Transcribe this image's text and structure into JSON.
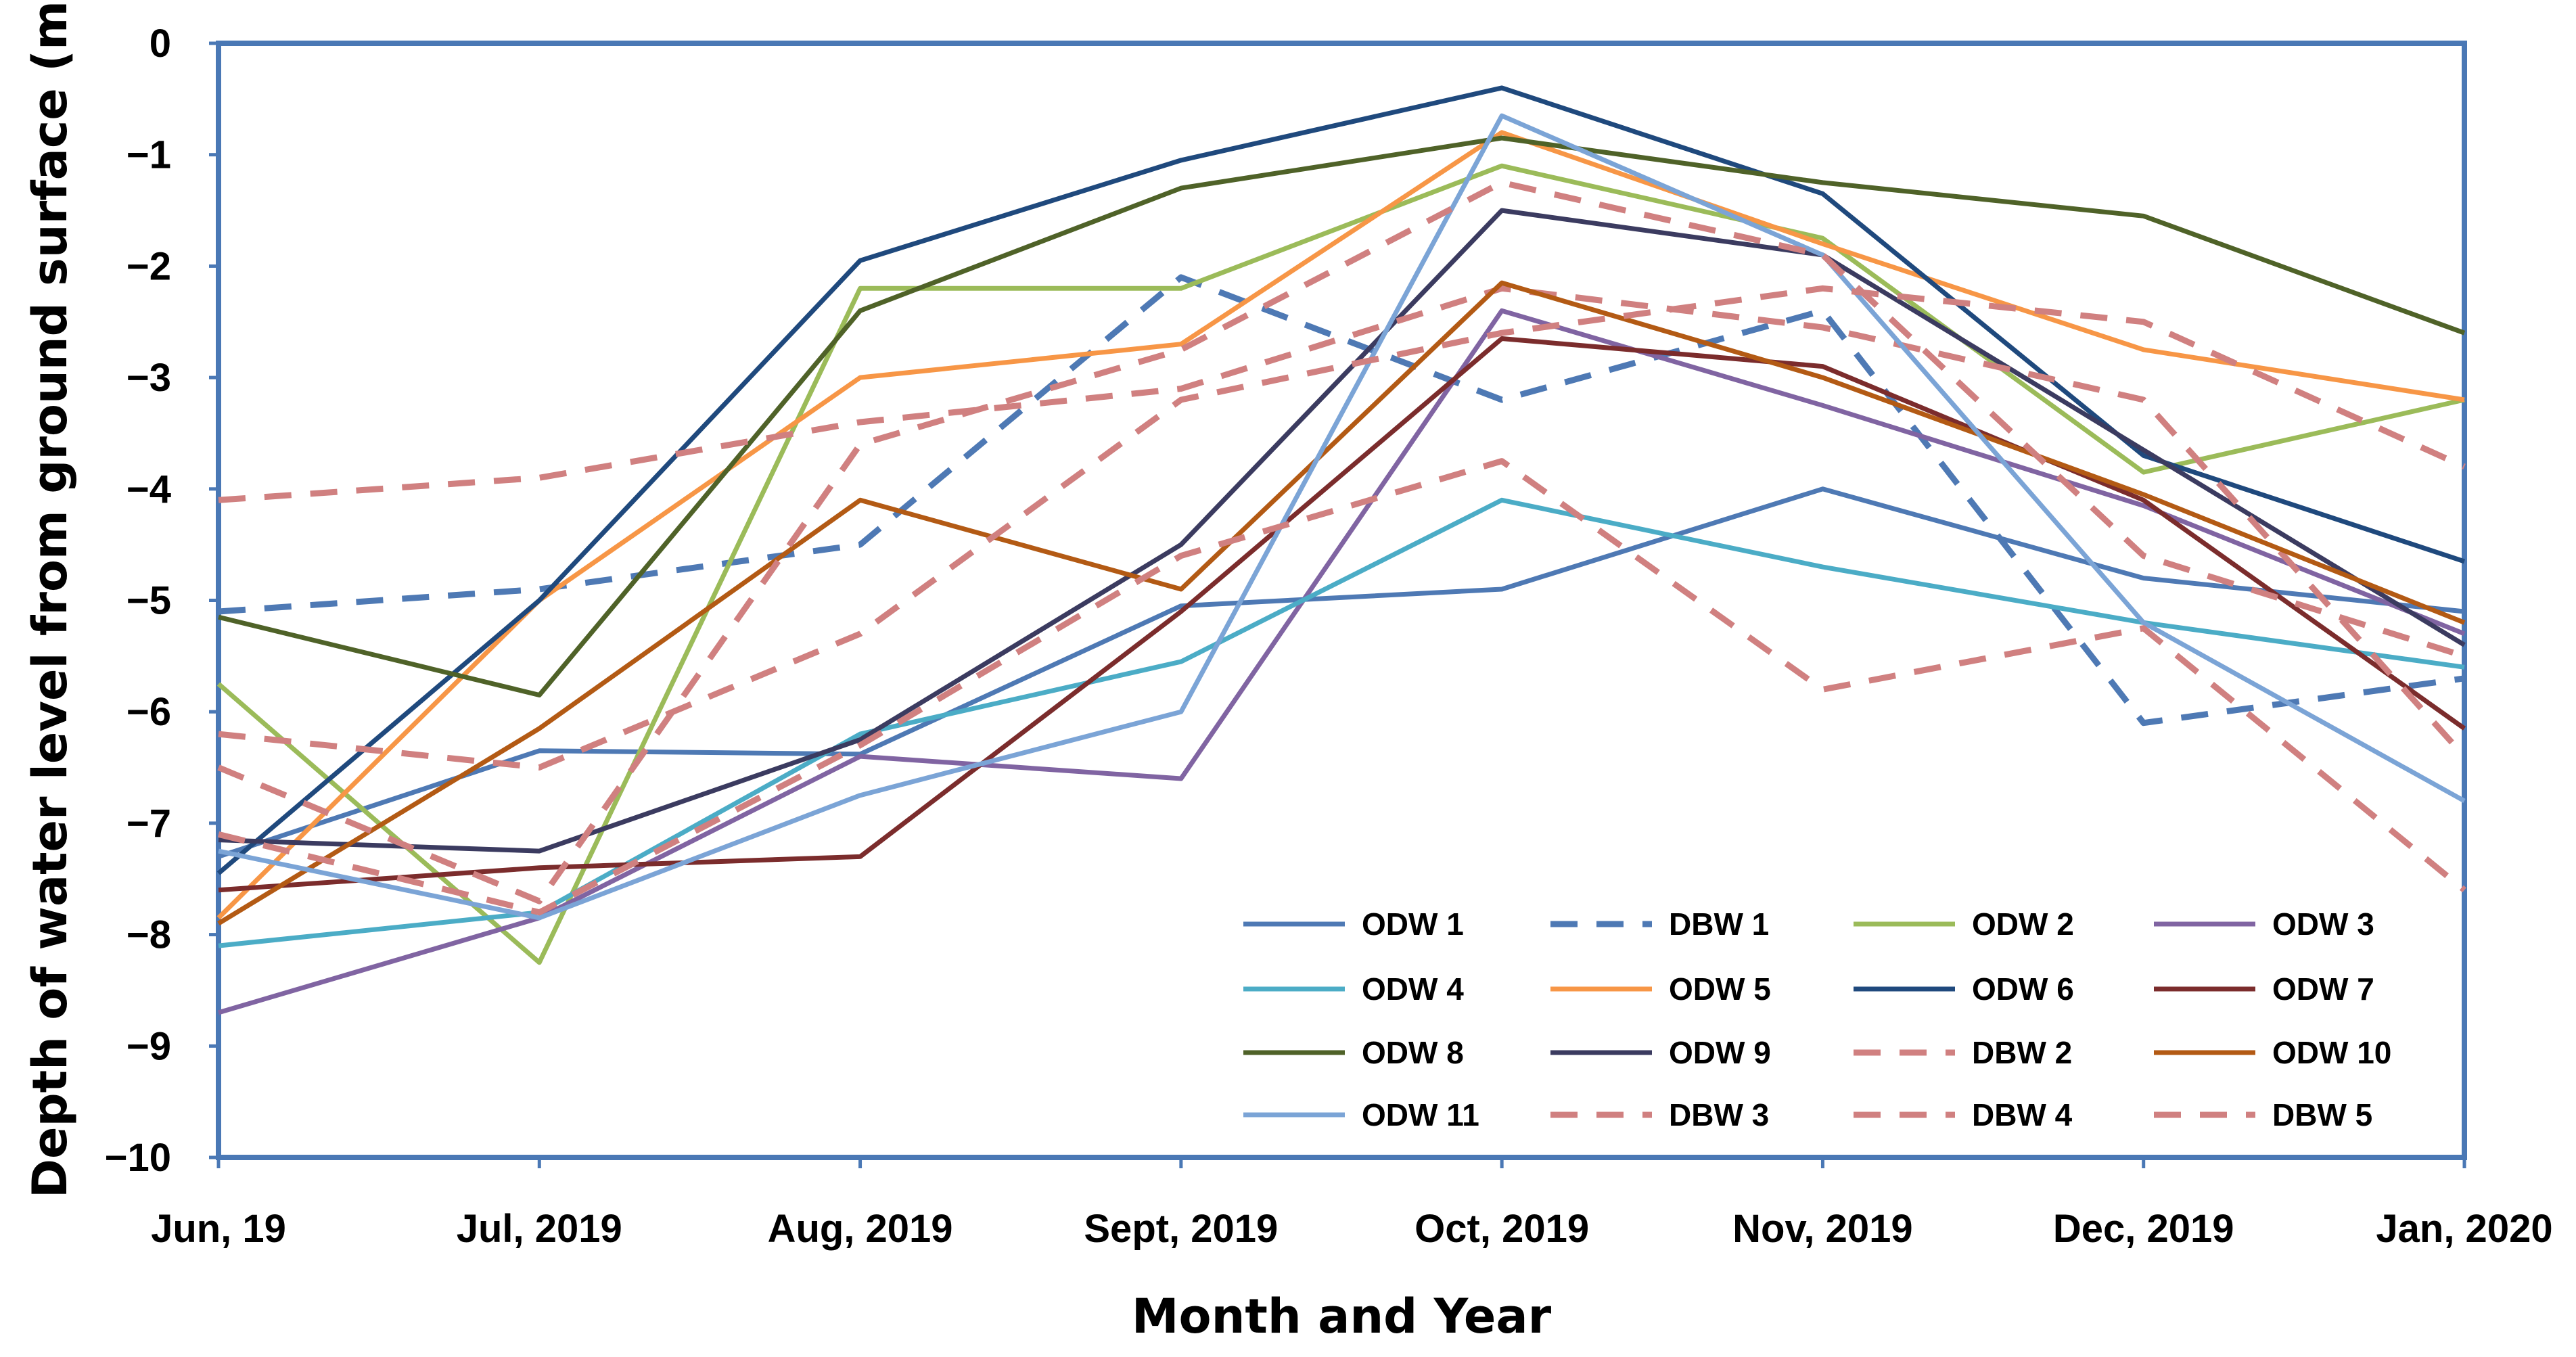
{
  "chart_data": {
    "type": "line",
    "xlabel": "Month and Year",
    "ylabel": "Depth of water level from ground surface (m)",
    "categories": [
      "Jun, 19",
      "Jul, 2019",
      "Aug, 2019",
      "Sept, 2019",
      "Oct, 2019",
      "Nov, 2019",
      "Dec, 2019",
      "Jan, 2020"
    ],
    "ylim": [
      -10,
      0
    ],
    "yticks": [
      0,
      -1,
      -2,
      -3,
      -4,
      -5,
      -6,
      -7,
      -8,
      -9,
      -10
    ],
    "ytick_labels": [
      "0",
      "−1",
      "−2",
      "−3",
      "−4",
      "−5",
      "−6",
      "−7",
      "−8",
      "−9",
      "−10"
    ],
    "legend_position": "bottom-right",
    "grid": false,
    "series": [
      {
        "name": "ODW 1",
        "style": "solid",
        "color": "#4e79b4",
        "values": [
          -7.3,
          -6.35,
          -6.38,
          -5.05,
          -4.9,
          -4.0,
          -4.8,
          -5.1
        ]
      },
      {
        "name": "DBW 1",
        "style": "dashed",
        "color": "#4e79b4",
        "values": [
          -5.1,
          -4.9,
          -4.5,
          -2.1,
          -3.2,
          -2.4,
          -6.1,
          -5.7
        ]
      },
      {
        "name": "ODW 2",
        "style": "solid",
        "color": "#9bbb59",
        "values": [
          -5.75,
          -8.25,
          -2.2,
          -2.2,
          -1.1,
          -1.75,
          -3.85,
          -3.2
        ]
      },
      {
        "name": "ODW 3",
        "style": "solid",
        "color": "#8064a2",
        "values": [
          -8.7,
          -7.85,
          -6.4,
          -6.6,
          -2.4,
          -3.25,
          -4.15,
          -5.3
        ]
      },
      {
        "name": "ODW 4",
        "style": "solid",
        "color": "#4bacc6",
        "values": [
          -8.1,
          -7.8,
          -6.2,
          -5.55,
          -4.1,
          -4.7,
          -5.2,
          -5.6
        ]
      },
      {
        "name": "ODW 5",
        "style": "solid",
        "color": "#f79646",
        "values": [
          -7.85,
          -5.0,
          -3.0,
          -2.7,
          -0.8,
          -1.8,
          -2.75,
          -3.2
        ]
      },
      {
        "name": "ODW 6",
        "style": "solid",
        "color": "#1f497d",
        "values": [
          -7.45,
          -5.0,
          -1.95,
          -1.05,
          -0.4,
          -1.35,
          -3.7,
          -4.65
        ]
      },
      {
        "name": "ODW 7",
        "style": "solid",
        "color": "#7b2c2c",
        "values": [
          -7.6,
          -7.4,
          -7.3,
          -5.1,
          -2.65,
          -2.9,
          -4.1,
          -6.15
        ]
      },
      {
        "name": "ODW 8",
        "style": "solid",
        "color": "#4f6228",
        "values": [
          -5.15,
          -5.85,
          -2.4,
          -1.3,
          -0.85,
          -1.25,
          -1.55,
          -2.6
        ]
      },
      {
        "name": "ODW 9",
        "style": "solid",
        "color": "#3b3b60",
        "values": [
          -7.15,
          -7.25,
          -6.25,
          -4.5,
          -1.5,
          -1.9,
          -3.65,
          -5.4
        ]
      },
      {
        "name": "DBW 2",
        "style": "dashed",
        "color": "#d08080",
        "values": [
          -4.1,
          -3.9,
          -3.4,
          -3.1,
          -2.2,
          -2.55,
          -3.2,
          -6.4
        ]
      },
      {
        "name": "ODW 10",
        "style": "solid",
        "color": "#b35a14",
        "values": [
          -7.9,
          -6.15,
          -4.1,
          -4.9,
          -2.15,
          -3.0,
          -4.05,
          -5.2
        ]
      },
      {
        "name": "ODW 11",
        "style": "solid",
        "color": "#7ba4d6",
        "values": [
          -7.25,
          -7.85,
          -6.75,
          -6.0,
          -0.65,
          -1.9,
          -5.2,
          -6.8
        ]
      },
      {
        "name": "DBW 3",
        "style": "dashed",
        "color": "#d08080",
        "values": [
          -6.2,
          -6.5,
          -5.3,
          -3.2,
          -2.6,
          -2.2,
          -2.5,
          -3.8
        ]
      },
      {
        "name": "DBW 4",
        "style": "dashed",
        "color": "#d08080",
        "values": [
          -6.5,
          -7.7,
          -3.6,
          -2.75,
          -1.25,
          -1.9,
          -4.6,
          -5.5
        ]
      },
      {
        "name": "DBW 5",
        "style": "dashed",
        "color": "#d08080",
        "values": [
          -7.1,
          -7.8,
          -6.3,
          -4.6,
          -3.75,
          -5.8,
          -5.25,
          -7.6
        ]
      }
    ]
  }
}
